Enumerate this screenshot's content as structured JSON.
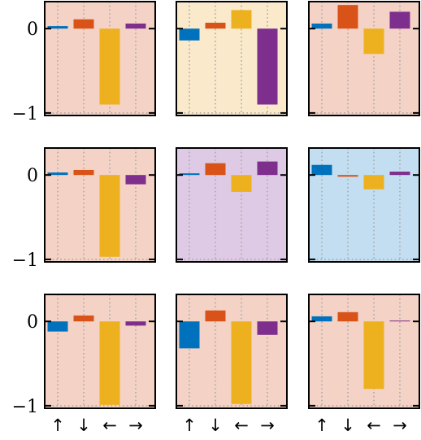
{
  "colors": {
    "up": "#0072BD",
    "down": "#D95319",
    "left": "#EDB120",
    "right": "#7E2F8E",
    "bg_salmon": "#F4D2C5",
    "bg_yellow": "#FAEACB",
    "bg_purple": "#DECAE4",
    "bg_blue": "#C2DEF0",
    "grid": "#AAAAAA"
  },
  "chart_data": {
    "type": "bar",
    "layout": "3x3 grid of small bar panels",
    "categories": [
      "↑",
      "↓",
      "←",
      "→"
    ],
    "ylim": [
      -1.03,
      0.32
    ],
    "yticks": [
      0,
      -1
    ],
    "ytick_labels": [
      "0",
      "−1"
    ],
    "grid": "vertical dotted at each category",
    "panels": [
      {
        "background": "bg_salmon",
        "values": [
          0.03,
          0.11,
          -0.9,
          0.06
        ]
      },
      {
        "background": "bg_yellow",
        "values": [
          -0.14,
          0.07,
          0.22,
          -0.9
        ]
      },
      {
        "background": "bg_salmon",
        "values": [
          0.06,
          0.28,
          -0.3,
          0.2
        ]
      },
      {
        "background": "bg_salmon",
        "values": [
          0.03,
          0.06,
          -0.97,
          -0.11
        ]
      },
      {
        "background": "bg_purple",
        "values": [
          0.02,
          0.14,
          -0.2,
          0.16
        ]
      },
      {
        "background": "bg_blue",
        "values": [
          0.12,
          -0.02,
          -0.17,
          0.04
        ]
      },
      {
        "background": "bg_salmon",
        "values": [
          -0.12,
          0.07,
          -0.99,
          -0.05
        ]
      },
      {
        "background": "bg_salmon",
        "values": [
          -0.32,
          0.13,
          -0.98,
          -0.16
        ]
      },
      {
        "background": "bg_salmon",
        "values": [
          0.06,
          0.11,
          -0.8,
          0.01
        ]
      }
    ]
  }
}
